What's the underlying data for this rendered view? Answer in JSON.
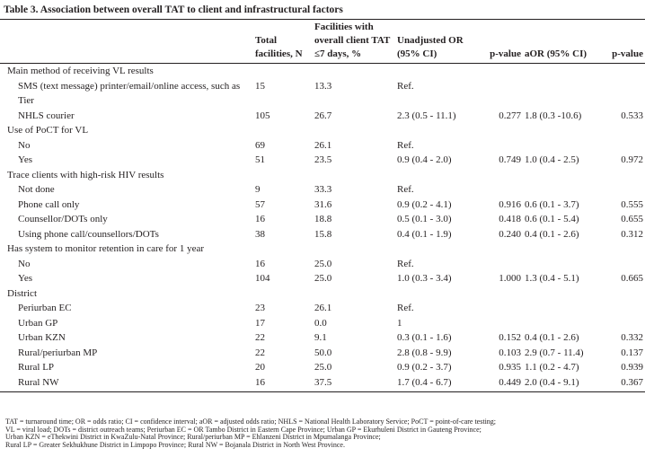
{
  "title": "Table 3. Association between overall TAT to client and infrastructural factors",
  "table": {
    "headers": [
      "Total facilities, N",
      "Facilities with overall client TAT ≤7 days, %",
      "Unadjusted OR (95% CI)",
      "p-value",
      "aOR (95% CI)",
      "p-value"
    ],
    "rows": [
      [
        "Main method of receiving VL results"
      ],
      [
        "SMS (text message) printer/email/online access, such as Tier",
        "15",
        "13.3",
        "Ref."
      ],
      [
        "NHLS courier",
        "105",
        "26.7",
        "2.3 (0.5 - 11.1)",
        "0.277",
        "1.8 (0.3 -10.6)",
        "0.533"
      ],
      [
        "Use of PoCT for VL"
      ],
      [
        "No",
        "69",
        "26.1",
        "Ref."
      ],
      [
        "Yes",
        "51",
        "23.5",
        "0.9 (0.4 - 2.0)",
        "0.749",
        "1.0 (0.4 - 2.5)",
        "0.972"
      ],
      [
        "Trace clients with high-risk HIV results"
      ],
      [
        "Not done",
        "9",
        "33.3",
        "Ref."
      ],
      [
        "Phone call only",
        "57",
        "31.6",
        "0.9 (0.2 - 4.1)",
        "0.916",
        "0.6 (0.1 - 3.7)",
        "0.555"
      ],
      [
        "Counsellor/DOTs only",
        "16",
        "18.8",
        "0.5 (0.1 - 3.0)",
        "0.418",
        "0.6 (0.1 - 5.4)",
        "0.655"
      ],
      [
        "Using phone call/counsellors/DOTs",
        "38",
        "15.8",
        "0.4 (0.1 - 1.9)",
        "0.240",
        "0.4 (0.1 - 2.6)",
        "0.312"
      ],
      [
        "Has system to monitor retention in care for 1 year"
      ],
      [
        "No",
        "16",
        "25.0",
        "Ref."
      ],
      [
        "Yes",
        "104",
        "25.0",
        "1.0 (0.3 - 3.4)",
        "1.000",
        "1.3 (0.4 - 5.1)",
        "0.665"
      ],
      [
        "District"
      ],
      [
        "Periurban EC",
        "23",
        "26.1",
        "Ref."
      ],
      [
        "Urban GP",
        "17",
        "0.0",
        "1"
      ],
      [
        "Urban KZN",
        "22",
        "9.1",
        "0.3 (0.1 - 1.6)",
        "0.152",
        "0.4 (0.1 - 2.6)",
        "0.332"
      ],
      [
        "Rural/periurban MP",
        "22",
        "50.0",
        "2.8 (0.8 - 9.9)",
        "0.103",
        "2.9 (0.7 - 11.4)",
        "0.137"
      ],
      [
        "Rural LP",
        "20",
        "25.0",
        "0.9 (0.2 - 3.7)",
        "0.935",
        "1.1 (0.2 - 4.7)",
        "0.939"
      ],
      [
        "Rural NW",
        "16",
        "37.5",
        "1.7 (0.4 - 6.7)",
        "0.449",
        "2.0 (0.4 - 9.1)",
        "0.367"
      ]
    ]
  },
  "notes": [
    "TAT = turnaround time; OR = odds ratio; CI = confidence interval; aOR = adjusted odds ratio; NHLS = National Health Laboratory Service; PoCT = point-of-care testing;",
    "VL = viral load; DOTs = district outreach teams; Periurban EC = OR Tambo District in Eastern Cape Province; Urban GP = Ekurhuleni District in Gauteng Province;",
    "Urban KZN = eThekwini District in KwaZulu-Natal Province; Rural/periurban MP = Ehlanzeni District in Mpumalanga Province;",
    "Rural LP = Greater Sekhukhune District in Limpopo Province; Rural NW = Bojanala District in North West Province."
  ]
}
